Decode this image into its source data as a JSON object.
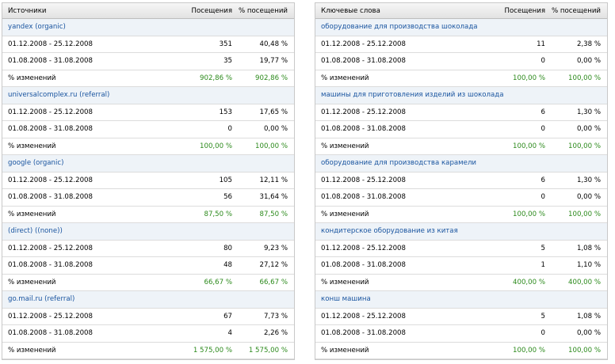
{
  "left": {
    "headers": {
      "name": "Источники",
      "visits": "Посещения",
      "pct": "% посещений"
    },
    "change_label": "% изменений",
    "groups": [
      {
        "name": "yandex (organic)",
        "rows": [
          {
            "period": "01.12.2008 - 25.12.2008",
            "visits": "351",
            "pct": "40,48 %"
          },
          {
            "period": "01.08.2008 - 31.08.2008",
            "visits": "35",
            "pct": "19,77 %"
          }
        ],
        "change": {
          "visits": "902,86 %",
          "pct": "902,86 %"
        }
      },
      {
        "name": "universalcomplex.ru (referral)",
        "rows": [
          {
            "period": "01.12.2008 - 25.12.2008",
            "visits": "153",
            "pct": "17,65 %"
          },
          {
            "period": "01.08.2008 - 31.08.2008",
            "visits": "0",
            "pct": "0,00 %"
          }
        ],
        "change": {
          "visits": "100,00 %",
          "pct": "100,00 %"
        }
      },
      {
        "name": "google (organic)",
        "rows": [
          {
            "period": "01.12.2008 - 25.12.2008",
            "visits": "105",
            "pct": "12,11 %"
          },
          {
            "period": "01.08.2008 - 31.08.2008",
            "visits": "56",
            "pct": "31,64 %"
          }
        ],
        "change": {
          "visits": "87,50 %",
          "pct": "87,50 %"
        }
      },
      {
        "name": "(direct) ((none))",
        "rows": [
          {
            "period": "01.12.2008 - 25.12.2008",
            "visits": "80",
            "pct": "9,23 %"
          },
          {
            "period": "01.08.2008 - 31.08.2008",
            "visits": "48",
            "pct": "27,12 %"
          }
        ],
        "change": {
          "visits": "66,67 %",
          "pct": "66,67 %"
        }
      },
      {
        "name": "go.mail.ru (referral)",
        "rows": [
          {
            "period": "01.12.2008 - 25.12.2008",
            "visits": "67",
            "pct": "7,73 %"
          },
          {
            "period": "01.08.2008 - 31.08.2008",
            "visits": "4",
            "pct": "2,26 %"
          }
        ],
        "change": {
          "visits": "1 575,00 %",
          "pct": "1 575,00 %"
        }
      }
    ]
  },
  "right": {
    "headers": {
      "name": "Ключевые слова",
      "visits": "Посещения",
      "pct": "% посещений"
    },
    "change_label": "% изменений",
    "groups": [
      {
        "name": "оборудование для производства шоколада",
        "rows": [
          {
            "period": "01.12.2008 - 25.12.2008",
            "visits": "11",
            "pct": "2,38 %"
          },
          {
            "period": "01.08.2008 - 31.08.2008",
            "visits": "0",
            "pct": "0,00 %"
          }
        ],
        "change": {
          "visits": "100,00 %",
          "pct": "100,00 %"
        }
      },
      {
        "name": "машины для приготовления изделий из шоколада",
        "rows": [
          {
            "period": "01.12.2008 - 25.12.2008",
            "visits": "6",
            "pct": "1,30 %"
          },
          {
            "period": "01.08.2008 - 31.08.2008",
            "visits": "0",
            "pct": "0,00 %"
          }
        ],
        "change": {
          "visits": "100,00 %",
          "pct": "100,00 %"
        }
      },
      {
        "name": "оборудование для производства карамели",
        "rows": [
          {
            "period": "01.12.2008 - 25.12.2008",
            "visits": "6",
            "pct": "1,30 %"
          },
          {
            "period": "01.08.2008 - 31.08.2008",
            "visits": "0",
            "pct": "0,00 %"
          }
        ],
        "change": {
          "visits": "100,00 %",
          "pct": "100,00 %"
        }
      },
      {
        "name": "кондитерское оборудование из китая",
        "rows": [
          {
            "period": "01.12.2008 - 25.12.2008",
            "visits": "5",
            "pct": "1,08 %"
          },
          {
            "period": "01.08.2008 - 31.08.2008",
            "visits": "1",
            "pct": "1,10 %"
          }
        ],
        "change": {
          "visits": "400,00 %",
          "pct": "400,00 %"
        }
      },
      {
        "name": "конш машина",
        "rows": [
          {
            "period": "01.12.2008 - 25.12.2008",
            "visits": "5",
            "pct": "1,08 %"
          },
          {
            "period": "01.08.2008 - 31.08.2008",
            "visits": "0",
            "pct": "0,00 %"
          }
        ],
        "change": {
          "visits": "100,00 %",
          "pct": "100,00 %"
        }
      }
    ]
  },
  "colors": {
    "link": "#1a55a0",
    "change": "#2c8a1c",
    "header_bg": "#e8e8e8"
  }
}
